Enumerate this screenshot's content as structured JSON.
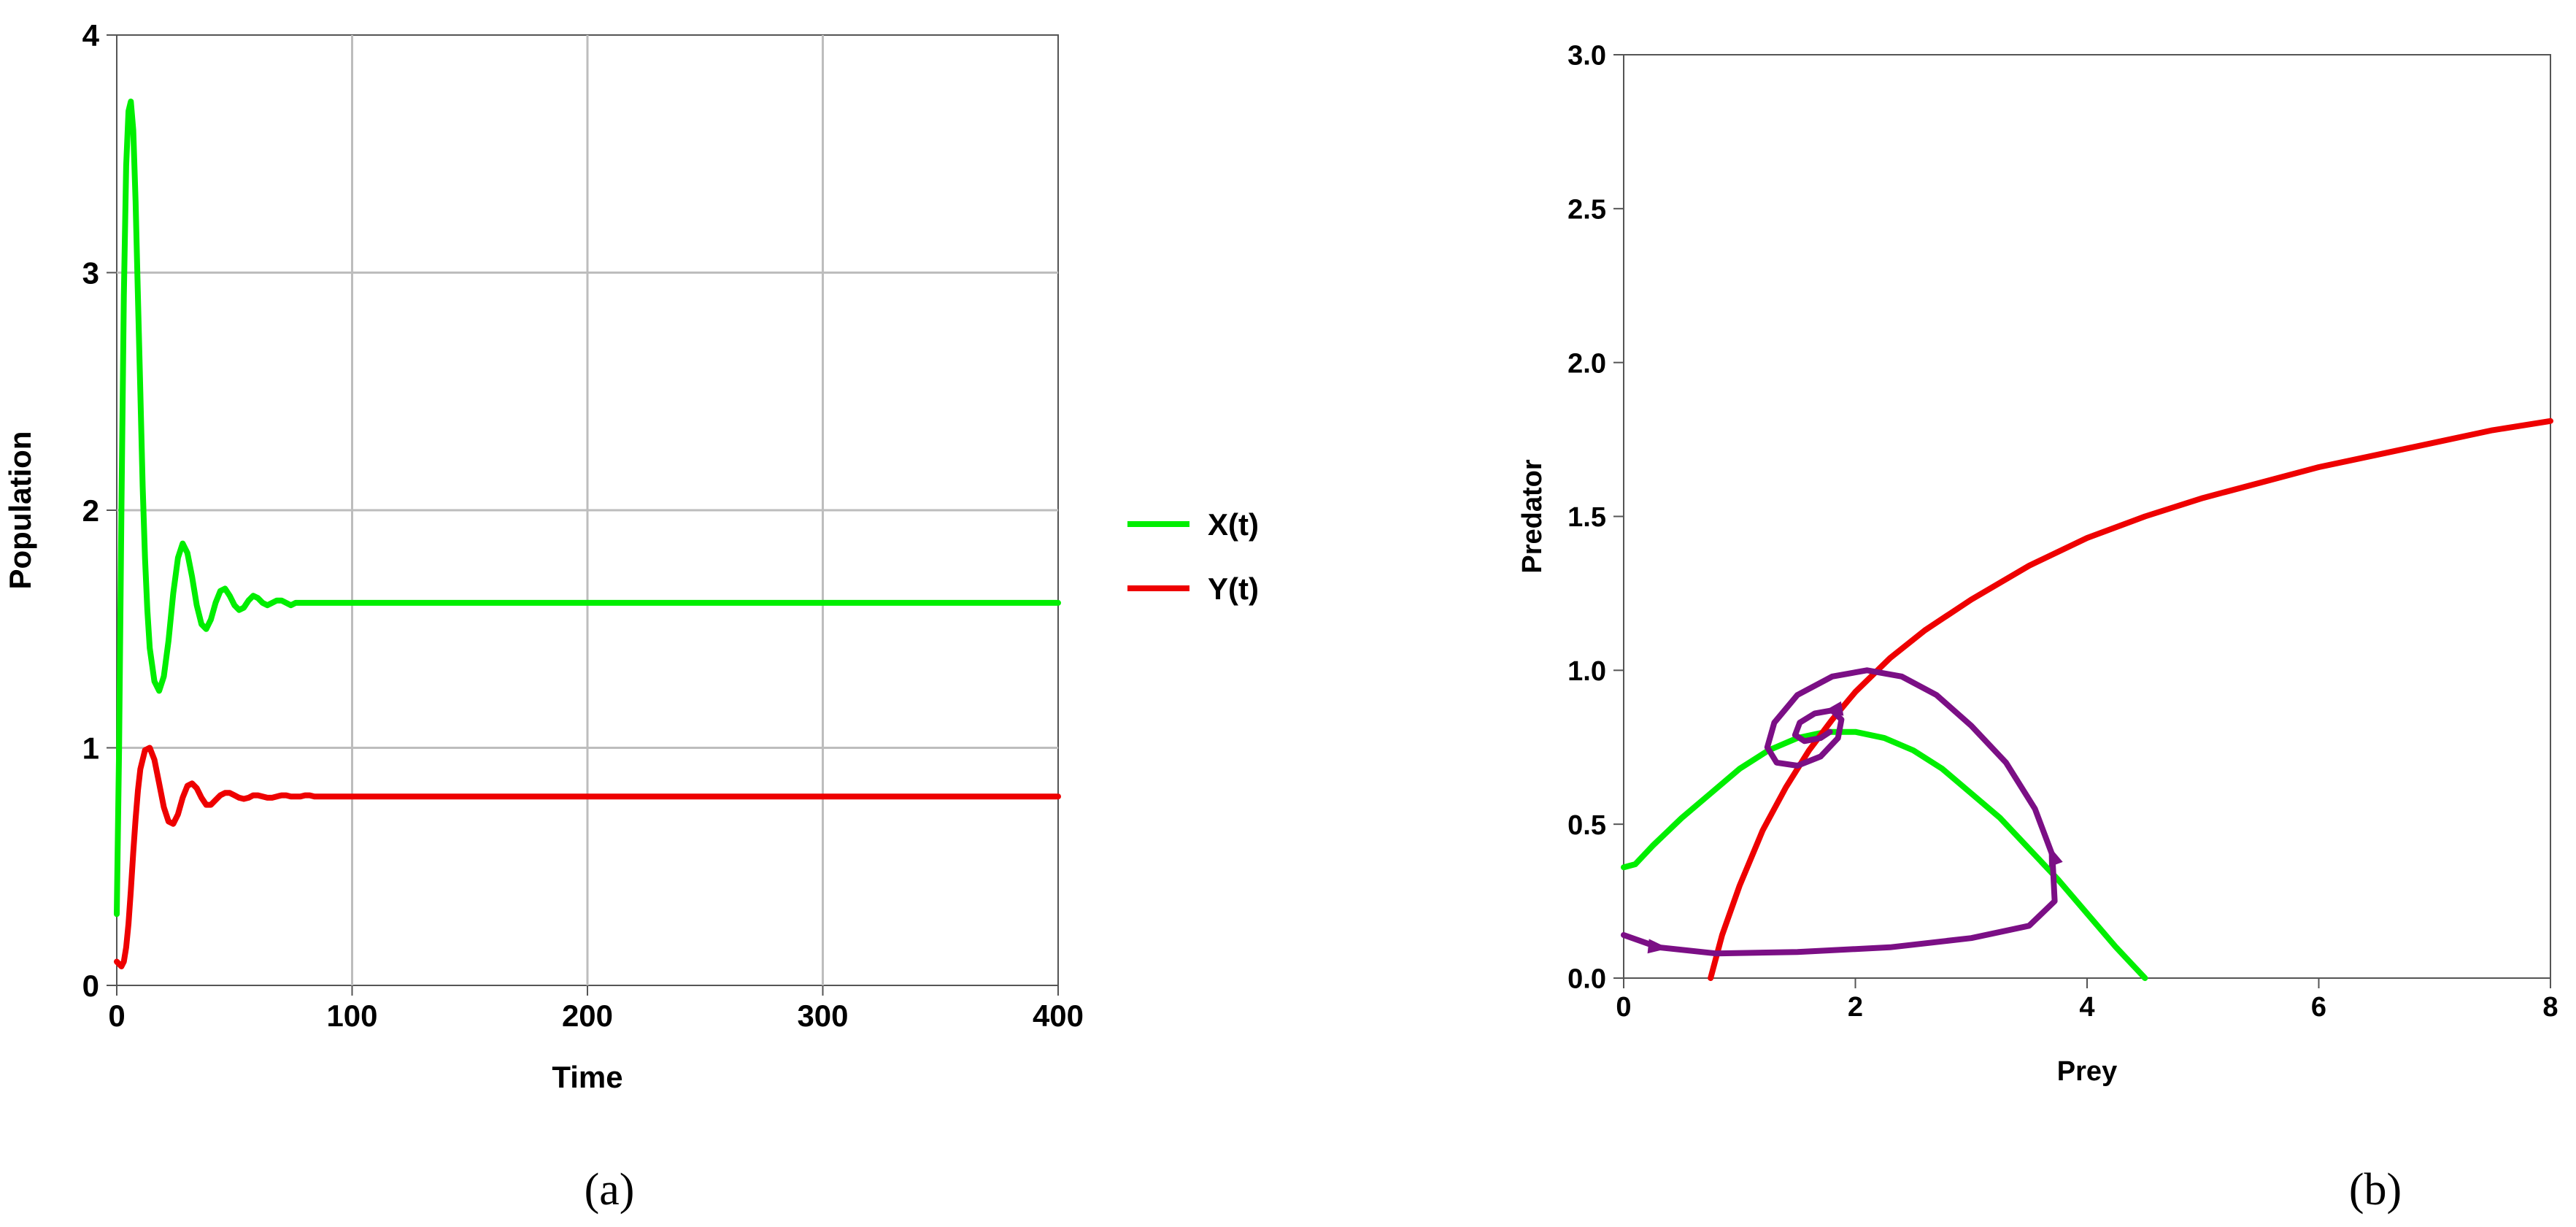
{
  "chart_data": [
    {
      "type": "line",
      "panel": "a",
      "caption": "(a)",
      "xlabel": "Time",
      "ylabel": "Population",
      "xlim": [
        0,
        400
      ],
      "ylim": [
        0,
        4
      ],
      "xticks": [
        "0",
        "100",
        "200",
        "300",
        "400"
      ],
      "yticks": [
        "0",
        "1",
        "2",
        "3",
        "4"
      ],
      "grid": true,
      "legend_position": "right",
      "series": [
        {
          "name": "X(t)",
          "color": "#00ee00",
          "x": [
            0,
            1,
            2,
            3,
            4,
            5,
            6,
            7,
            8,
            9,
            10,
            11,
            12,
            13,
            14,
            16,
            18,
            20,
            22,
            24,
            26,
            28,
            30,
            32,
            34,
            36,
            38,
            40,
            42,
            44,
            46,
            48,
            50,
            52,
            54,
            56,
            58,
            60,
            62,
            64,
            66,
            68,
            70,
            72,
            74,
            76,
            78,
            80,
            82,
            84,
            86,
            88,
            90,
            92,
            95,
            100,
            105,
            110,
            120,
            140,
            160,
            200,
            250,
            300,
            350,
            400
          ],
          "y": [
            0.3,
            1.0,
            2.0,
            2.9,
            3.45,
            3.68,
            3.72,
            3.6,
            3.3,
            2.9,
            2.5,
            2.1,
            1.8,
            1.58,
            1.42,
            1.28,
            1.24,
            1.3,
            1.45,
            1.65,
            1.8,
            1.86,
            1.82,
            1.72,
            1.6,
            1.52,
            1.5,
            1.54,
            1.61,
            1.66,
            1.67,
            1.64,
            1.6,
            1.58,
            1.59,
            1.62,
            1.64,
            1.63,
            1.61,
            1.6,
            1.61,
            1.62,
            1.62,
            1.61,
            1.6,
            1.61,
            1.61,
            1.61,
            1.61,
            1.61,
            1.61,
            1.61,
            1.61,
            1.61,
            1.61,
            1.61,
            1.61,
            1.61,
            1.61,
            1.61,
            1.61,
            1.61,
            1.61,
            1.61,
            1.61,
            1.61
          ]
        },
        {
          "name": "Y(t)",
          "color": "#ee0000",
          "x": [
            0,
            1,
            2,
            3,
            4,
            5,
            6,
            7,
            8,
            9,
            10,
            12,
            14,
            16,
            18,
            20,
            22,
            24,
            26,
            28,
            30,
            32,
            34,
            36,
            38,
            40,
            42,
            44,
            46,
            48,
            50,
            52,
            54,
            56,
            58,
            60,
            62,
            64,
            66,
            68,
            70,
            72,
            74,
            76,
            78,
            80,
            82,
            84,
            86,
            88,
            90,
            95,
            100,
            110,
            120,
            150,
            200,
            300,
            400
          ],
          "y": [
            0.1,
            0.09,
            0.08,
            0.1,
            0.16,
            0.26,
            0.4,
            0.56,
            0.7,
            0.82,
            0.91,
            0.99,
            1.0,
            0.95,
            0.85,
            0.75,
            0.69,
            0.68,
            0.72,
            0.79,
            0.84,
            0.85,
            0.83,
            0.79,
            0.76,
            0.76,
            0.78,
            0.8,
            0.81,
            0.81,
            0.8,
            0.79,
            0.785,
            0.79,
            0.8,
            0.8,
            0.795,
            0.79,
            0.79,
            0.795,
            0.8,
            0.8,
            0.795,
            0.795,
            0.795,
            0.8,
            0.8,
            0.795,
            0.795,
            0.795,
            0.795,
            0.795,
            0.795,
            0.795,
            0.795,
            0.795,
            0.795,
            0.795,
            0.795
          ]
        }
      ]
    },
    {
      "type": "line",
      "panel": "b",
      "caption": "(b)",
      "xlabel": "Prey",
      "ylabel": "Predator",
      "xlim": [
        0,
        8
      ],
      "ylim": [
        0,
        3
      ],
      "xticks": [
        "0",
        "2",
        "4",
        "6",
        "8"
      ],
      "yticks": [
        "0.0",
        "0.5",
        "1.0",
        "1.5",
        "2.0",
        "2.5",
        "3.0"
      ],
      "grid": false,
      "series": [
        {
          "color": "#00ee00",
          "x": [
            0,
            0.1,
            0.25,
            0.5,
            0.75,
            1.0,
            1.25,
            1.5,
            1.75,
            2.0,
            2.25,
            2.5,
            2.75,
            3.0,
            3.25,
            3.5,
            3.75,
            4.0,
            4.25,
            4.5
          ],
          "y": [
            0.36,
            0.37,
            0.43,
            0.52,
            0.6,
            0.68,
            0.74,
            0.78,
            0.8,
            0.8,
            0.78,
            0.74,
            0.68,
            0.6,
            0.52,
            0.42,
            0.32,
            0.21,
            0.1,
            0.0
          ]
        },
        {
          "color": "#ee0000",
          "x": [
            0.75,
            0.85,
            1.0,
            1.2,
            1.4,
            1.6,
            1.8,
            2.0,
            2.3,
            2.6,
            3.0,
            3.5,
            4.0,
            4.5,
            5.0,
            5.5,
            6.0,
            6.5,
            7.0,
            7.5,
            8.0
          ],
          "y": [
            0.0,
            0.14,
            0.3,
            0.48,
            0.62,
            0.74,
            0.84,
            0.93,
            1.04,
            1.13,
            1.23,
            1.34,
            1.43,
            1.5,
            1.56,
            1.61,
            1.66,
            1.7,
            1.74,
            1.78,
            1.81
          ]
        },
        {
          "color": "#7b0f85",
          "x": [
            0.0,
            0.3,
            0.8,
            1.5,
            2.3,
            3.0,
            3.5,
            3.72,
            3.7,
            3.55,
            3.3,
            3.0,
            2.7,
            2.4,
            2.1,
            1.8,
            1.5,
            1.3,
            1.24,
            1.32,
            1.5,
            1.7,
            1.85,
            1.88,
            1.8,
            1.65,
            1.52,
            1.48,
            1.56,
            1.7,
            1.78
          ],
          "y": [
            0.14,
            0.1,
            0.08,
            0.085,
            0.1,
            0.13,
            0.17,
            0.25,
            0.4,
            0.55,
            0.7,
            0.82,
            0.92,
            0.98,
            1.0,
            0.98,
            0.92,
            0.83,
            0.75,
            0.7,
            0.69,
            0.72,
            0.78,
            0.84,
            0.87,
            0.86,
            0.83,
            0.79,
            0.77,
            0.78,
            0.8
          ]
        }
      ]
    }
  ]
}
